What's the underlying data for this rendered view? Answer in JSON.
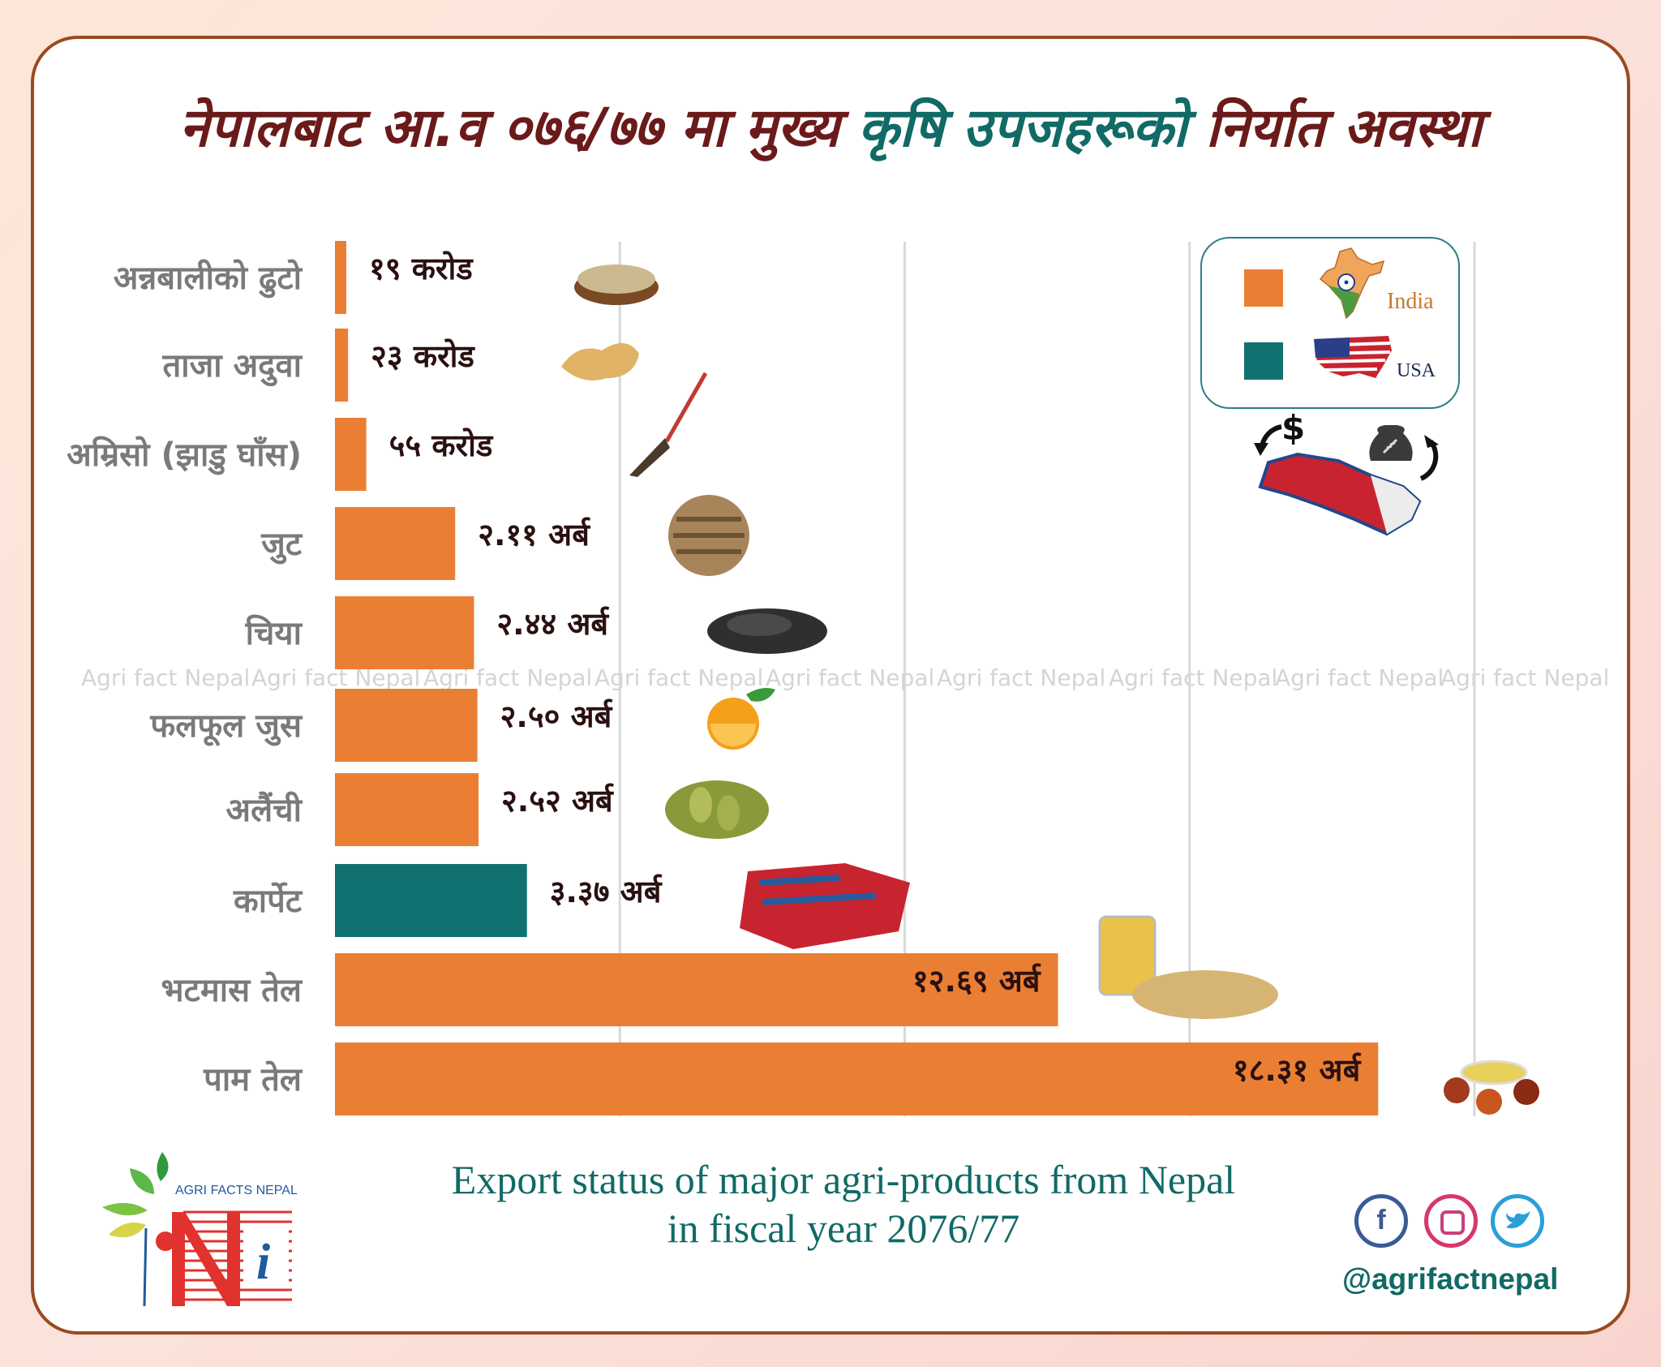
{
  "title": {
    "part1": "नेपालबाट आ.व ०७६/७७ मा मुख्य ",
    "part2": "कृषि उपजहरूको ",
    "part3": "निर्यात अवस्था"
  },
  "colors": {
    "india": "#ea7f33",
    "usa": "#117170",
    "title_dark": "#6b1a1a",
    "title_teal": "#116a66"
  },
  "legend": [
    {
      "name": "India",
      "color": "#ea7f33",
      "icon": "india-map-icon"
    },
    {
      "name": "USA",
      "color": "#117170",
      "icon": "usa-flag-map-icon"
    }
  ],
  "chart_data": {
    "type": "bar",
    "orientation": "horizontal",
    "grid": true,
    "legend_position": "top-right",
    "unit_note": "values in NPR crore (१ अर्ब = १०० करोड)",
    "xlim": [
      0,
      2000
    ],
    "categories": [
      "अन्नबालीको ढुटो",
      "ताजा अदुवा",
      "अम्रिसो (झाडु घाँस)",
      "जुट",
      "चिया",
      "फलफूल जुस",
      "अलैंची",
      "कार्पेट",
      "भटमास तेल",
      "पाम तेल"
    ],
    "values": [
      19,
      23,
      55,
      211,
      244,
      250,
      252,
      337,
      1269,
      1831
    ],
    "value_labels": [
      "१९ करोड",
      "२३ करोड",
      "५५ करोड",
      "२.११ अर्ब",
      "२.४४ अर्ब",
      "२.५० अर्ब",
      "२.५२ अर्ब",
      "३.३७ अर्ब",
      "१२.६९ अर्ब",
      "१८.३१ अर्ब"
    ],
    "destination": [
      "India",
      "India",
      "India",
      "India",
      "India",
      "India",
      "India",
      "USA",
      "India",
      "India"
    ],
    "icons": [
      "bran-bowl-icon",
      "ginger-icon",
      "broom-icon",
      "jute-icon",
      "tea-leaves-icon",
      "orange-icon",
      "cardamom-icon",
      "carpet-icon",
      "soybean-oil-icon",
      "palm-oil-icon"
    ]
  },
  "watermark": "Agri fact Nepal",
  "caption": {
    "line1": "Export status of major agri-products from Nepal",
    "line2": "in fiscal year 2076/77"
  },
  "footer": {
    "handle": "@agrifactnepal",
    "logo_text": "AGRI FACTS NEPAL",
    "logo_letter": "i",
    "social": [
      "facebook-icon",
      "instagram-icon",
      "twitter-icon"
    ]
  },
  "trade_graphic": {
    "dollar": "$"
  }
}
